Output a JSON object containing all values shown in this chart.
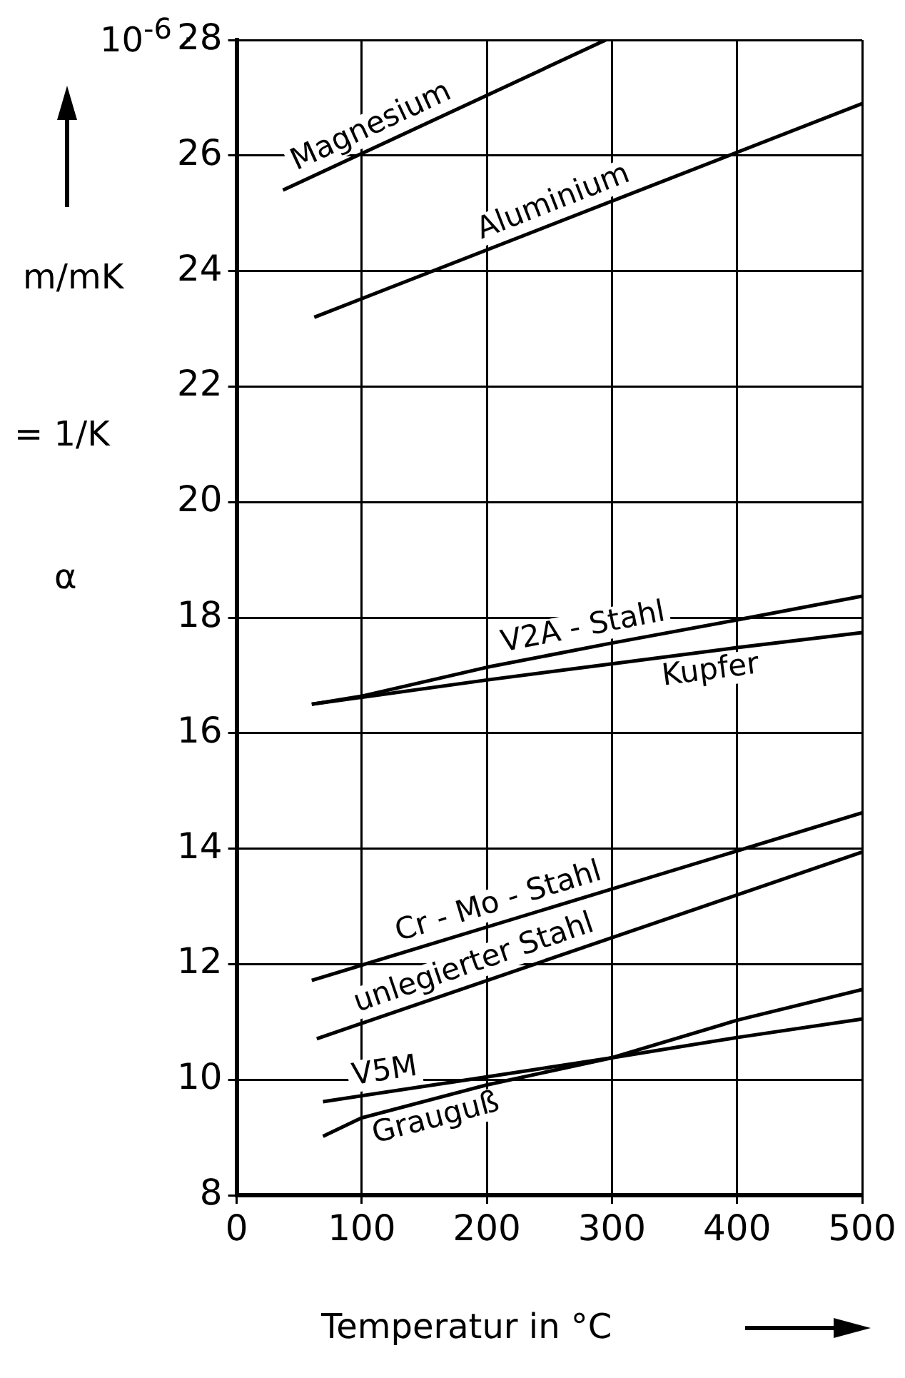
{
  "chart_data": {
    "type": "line",
    "xlabel": "Temperatur in °C",
    "ylabel": "α",
    "annotations": [
      "10$^{-6}$ ·",
      "m/mK",
      "= 1/K"
    ],
    "xlim": [
      0,
      500
    ],
    "xticks": [
      0,
      100,
      200,
      300,
      400,
      500
    ],
    "ylim": [
      8,
      28
    ],
    "yticks": [
      8,
      10,
      12,
      14,
      16,
      18,
      20,
      22,
      24,
      26,
      28
    ],
    "grid": true,
    "legend": false,
    "marker": "none",
    "line_style": "solid",
    "series": [
      {
        "name": "Magnesium",
        "color": "#000000",
        "x": [
          37,
          295
        ],
        "values": [
          25.4,
          28
        ]
      },
      {
        "name": "Aluminium",
        "color": "#000000",
        "x": [
          62,
          500
        ],
        "values": [
          23.2,
          26.9
        ]
      },
      {
        "name": "V2A - Stahl",
        "color": "#000000",
        "x": [
          60,
          100,
          200,
          300,
          400,
          500
        ],
        "values": [
          16.5,
          16.64,
          17.14,
          17.56,
          17.96,
          18.37
        ]
      },
      {
        "name": "Kupfer",
        "color": "#000000",
        "x": [
          60,
          100,
          200,
          300,
          400,
          500
        ],
        "values": [
          16.5,
          16.62,
          16.92,
          17.2,
          17.48,
          17.74
        ]
      },
      {
        "name": "Cr - Mo - Stahl",
        "color": "#000000",
        "x": [
          60,
          500
        ],
        "values": [
          11.72,
          14.62
        ]
      },
      {
        "name": "unlegierter Stahl",
        "color": "#000000",
        "x": [
          64,
          500
        ],
        "values": [
          10.71,
          13.94
        ]
      },
      {
        "name": "V5M",
        "color": "#000000",
        "x": [
          69,
          200,
          300,
          400,
          500
        ],
        "values": [
          9.62,
          10.05,
          10.38,
          10.73,
          11.05
        ]
      },
      {
        "name": "Grauguß",
        "color": "#000000",
        "x": [
          69,
          100,
          200,
          300,
          400,
          500
        ],
        "values": [
          9.02,
          9.34,
          9.91,
          10.38,
          11.03,
          11.56
        ]
      }
    ]
  }
}
